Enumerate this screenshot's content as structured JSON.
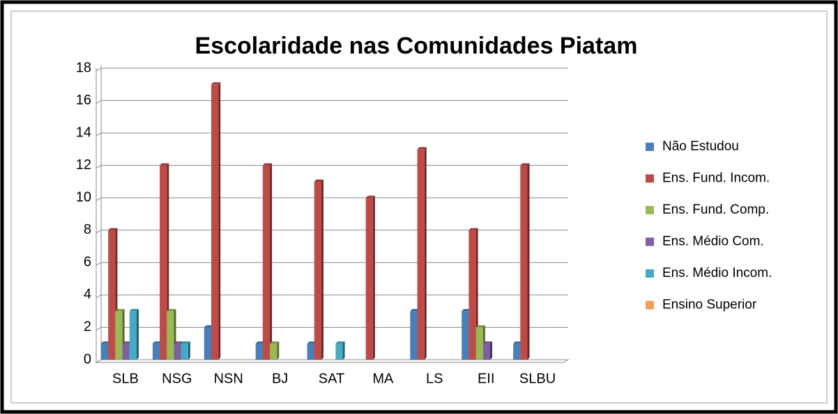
{
  "chart_data": {
    "type": "bar",
    "title": "Escolaridade nas Comunidades Piatam",
    "categories": [
      "SLB",
      "NSG",
      "NSN",
      "BJ",
      "SAT",
      "MA",
      "LS",
      "EII",
      "SLBU"
    ],
    "series": [
      {
        "name": "Não Estudou",
        "color": "#4a7ebb",
        "values": [
          1,
          1,
          2,
          1,
          1,
          0,
          3,
          3,
          1
        ]
      },
      {
        "name": "Ens. Fund. Incom.",
        "color": "#be4b48",
        "values": [
          8,
          12,
          17,
          12,
          11,
          10,
          13,
          8,
          12
        ]
      },
      {
        "name": "Ens. Fund. Comp.",
        "color": "#98b954",
        "values": [
          3,
          3,
          0,
          1,
          0,
          0,
          0,
          2,
          0
        ]
      },
      {
        "name": "Ens. Médio Com.",
        "color": "#7d60a0",
        "values": [
          1,
          1,
          0,
          0,
          0,
          0,
          0,
          1,
          0
        ]
      },
      {
        "name": "Ens. Médio Incom.",
        "color": "#46aac5",
        "values": [
          3,
          1,
          0,
          0,
          1,
          0,
          0,
          0,
          0
        ]
      },
      {
        "name": "Ensino Superior",
        "color": "#f59d56",
        "values": [
          0,
          0,
          0,
          0,
          0,
          0,
          0,
          0,
          0
        ]
      }
    ],
    "ylim": [
      0,
      18
    ],
    "yticks": [
      0,
      2,
      4,
      6,
      8,
      10,
      12,
      14,
      16,
      18
    ],
    "grid": true,
    "legend": "right"
  }
}
